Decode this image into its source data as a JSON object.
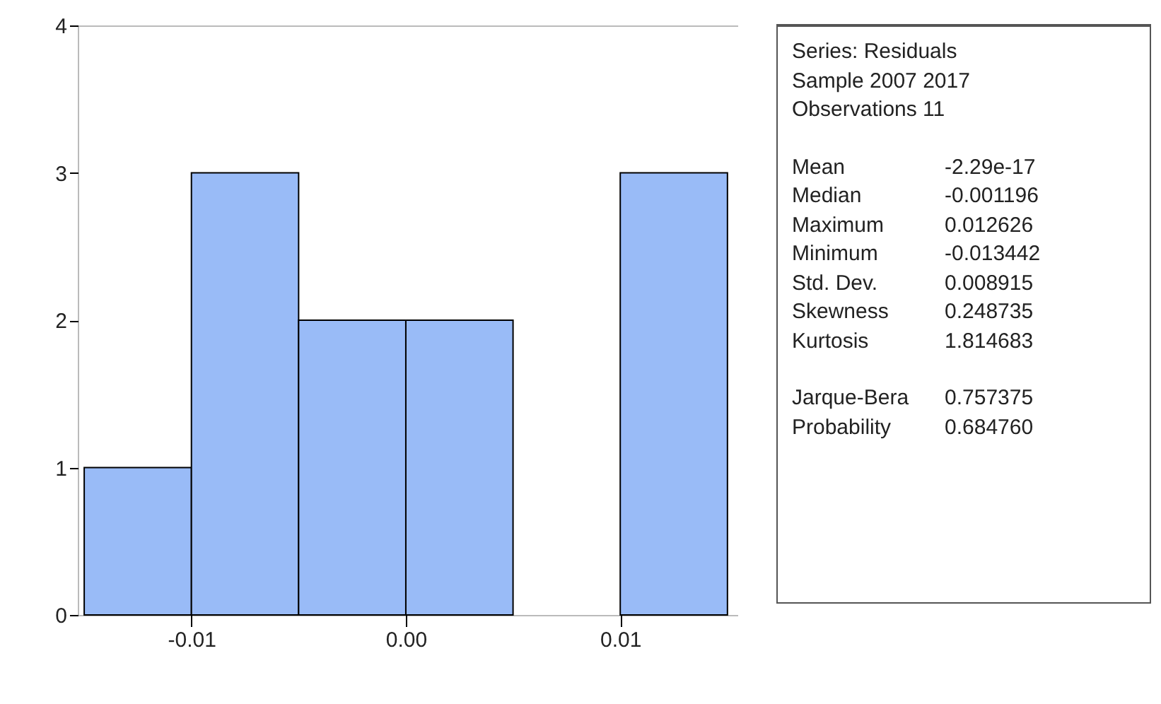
{
  "chart_data": {
    "type": "histogram",
    "bins": [
      -0.015,
      -0.01,
      -0.005,
      0,
      0.005,
      0.01,
      0.015
    ],
    "values": [
      1,
      3,
      2,
      2,
      0,
      3
    ],
    "color": "#99bbf7",
    "xlim": [
      -0.0153,
      0.0155
    ],
    "xticks": [
      -0.01,
      {
        "value": 0,
        "label": "0.00"
      },
      0.01
    ],
    "ylim": [
      0,
      4
    ],
    "yticks": [
      0,
      1,
      2,
      3,
      4
    ],
    "grid": false,
    "annotations": [
      "Series: Residuals",
      "Sample 2007 2017",
      "Observations 11",
      "Mean\t-2.29e-17",
      "Median\t-0.001196",
      "Maximum\t0.012626",
      "Minimum\t-0.013442",
      "Std. Dev.\t0.008915",
      "Skewness\t0.248735",
      "Kurtosis\t1.814683",
      "Jarque-Bera\t0.757375",
      "Probability\t0.684760"
    ]
  }
}
